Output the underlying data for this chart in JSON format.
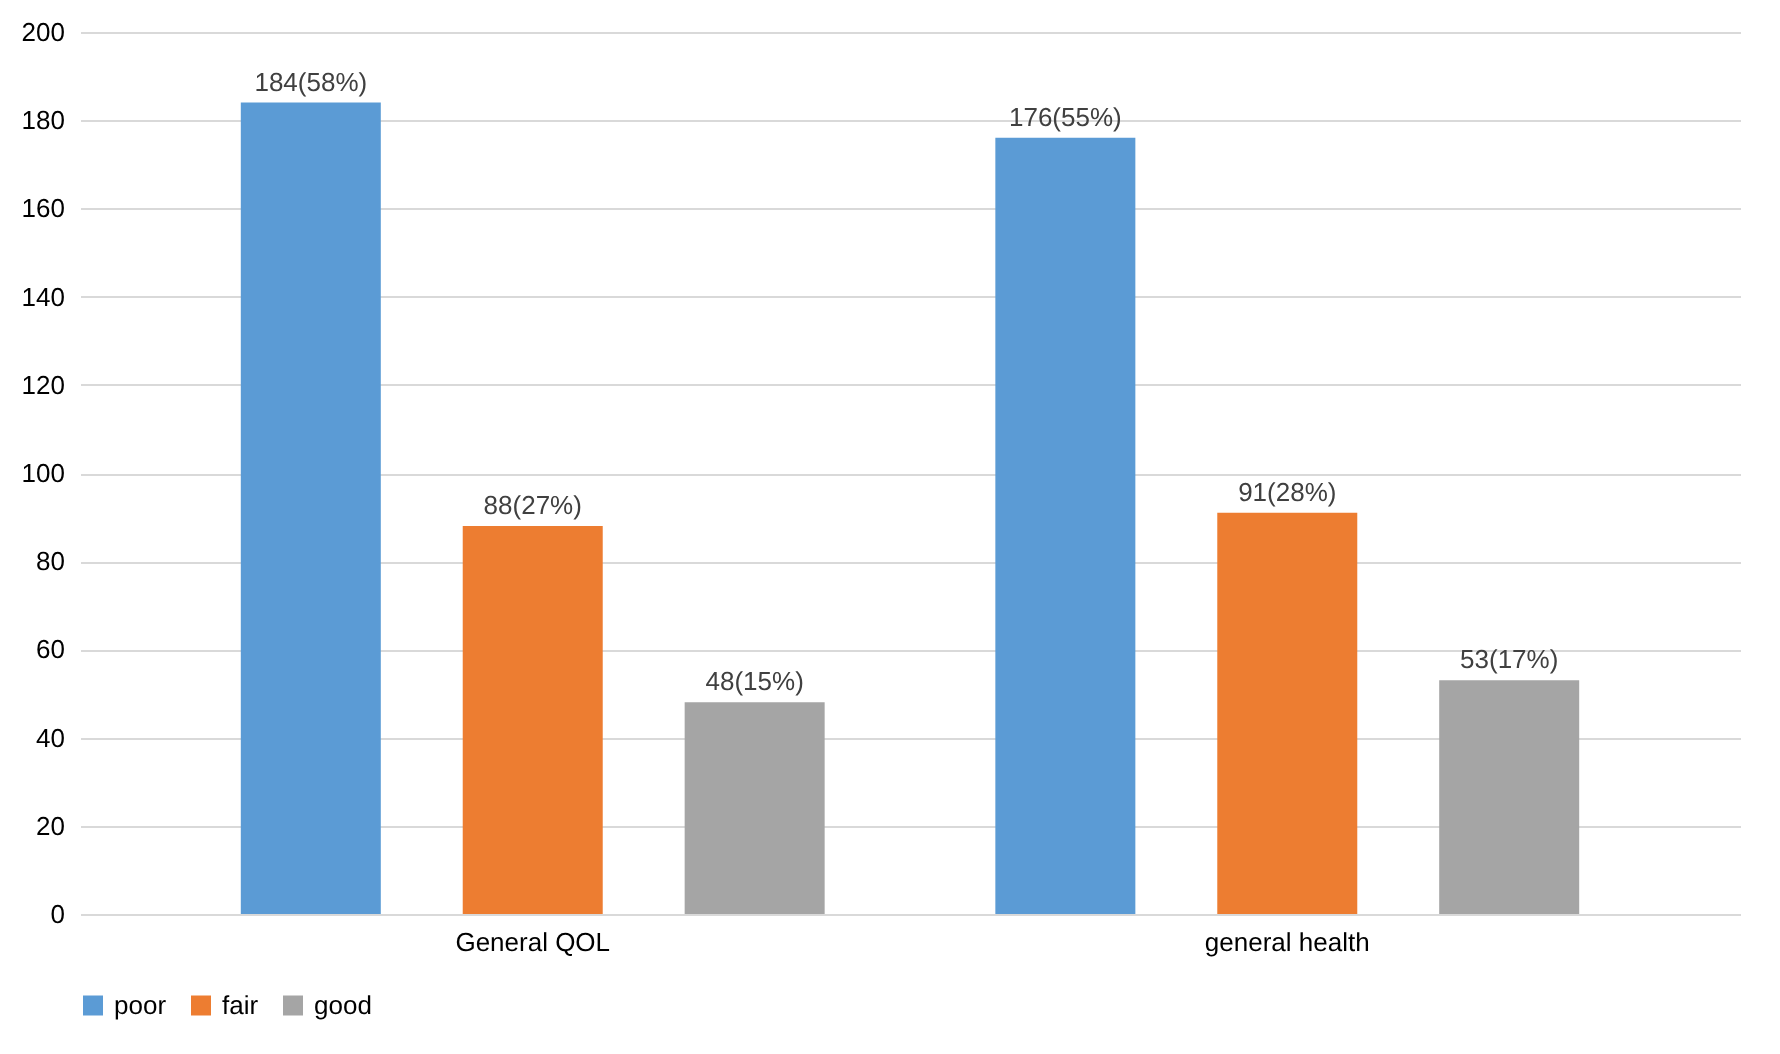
{
  "chart_data": {
    "type": "bar",
    "categories": [
      "General QOL",
      "general health"
    ],
    "series": [
      {
        "name": "poor",
        "color": "#5b9bd5",
        "values": [
          184,
          176
        ],
        "value_labels": [
          "184(58%)",
          "176(55%)"
        ]
      },
      {
        "name": "fair",
        "color": "#ed7d31",
        "values": [
          88,
          91
        ],
        "value_labels": [
          "88(27%)",
          "91(28%)"
        ]
      },
      {
        "name": "good",
        "color": "#a5a5a5",
        "values": [
          48,
          53
        ],
        "value_labels": [
          "48(15%)",
          "53(17%)"
        ]
      }
    ],
    "ylim": [
      0,
      200
    ],
    "yticks": [
      0,
      20,
      40,
      60,
      80,
      100,
      120,
      140,
      160,
      180,
      200
    ],
    "grid": "y",
    "legend": "bottom"
  }
}
